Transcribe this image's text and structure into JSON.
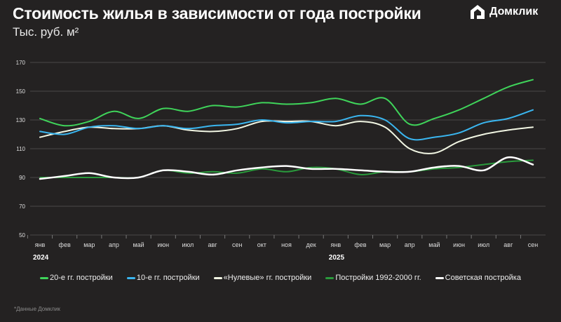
{
  "header": {
    "title": "Стоимость жилья в зависимости от года постройки",
    "subtitle": "Тыс. руб. м²",
    "logo_text": "Домклик"
  },
  "chart_data": {
    "type": "line",
    "title": "Стоимость жилья в зависимости от года постройки",
    "ylabel": "Тыс. руб. м²",
    "ylim": [
      50,
      170
    ],
    "yticks": [
      50,
      70,
      90,
      110,
      130,
      150,
      170
    ],
    "grid": true,
    "legend_position": "bottom",
    "categories": [
      "янв",
      "фев",
      "мар",
      "апр",
      "май",
      "июн",
      "июл",
      "авг",
      "сен",
      "окт",
      "ноя",
      "дек",
      "янв",
      "фев",
      "мар",
      "апр",
      "май",
      "июн",
      "июл",
      "авг",
      "сен"
    ],
    "year_labels": [
      {
        "label": "2024",
        "index": 0
      },
      {
        "label": "2025",
        "index": 12
      }
    ],
    "series": [
      {
        "name": "20-е гг. постройки",
        "color": "#3fd45a",
        "width": 2,
        "values": [
          131,
          126,
          129,
          136,
          131,
          138,
          136,
          140,
          139,
          142,
          141,
          142,
          145,
          141,
          145,
          127,
          131,
          137,
          145,
          153,
          158
        ]
      },
      {
        "name": "10-е гг. постройки",
        "color": "#3ab6f0",
        "width": 2,
        "values": [
          122,
          120,
          125,
          126,
          124,
          126,
          124,
          126,
          127,
          130,
          128,
          129,
          129,
          133,
          130,
          117,
          118,
          121,
          128,
          131,
          137
        ]
      },
      {
        "name": "«Нулевые» гг. постройки",
        "color": "#f2f7e4",
        "width": 2,
        "values": [
          118,
          122,
          125,
          124,
          124,
          126,
          123,
          122,
          124,
          129,
          129,
          129,
          126,
          129,
          125,
          110,
          107,
          115,
          120,
          123,
          125
        ]
      },
      {
        "name": "Постройки 1992-2000 гг.",
        "color": "#2a9a3c",
        "width": 2,
        "values": [
          90,
          90,
          90,
          90,
          90,
          95,
          93,
          94,
          93,
          96,
          94,
          97,
          96,
          92,
          94,
          94,
          96,
          97,
          99,
          101,
          102
        ]
      },
      {
        "name": "Советская постройка",
        "color": "#ffffff",
        "width": 2.5,
        "values": [
          89,
          91,
          93,
          90,
          90,
          95,
          94,
          92,
          95,
          97,
          98,
          96,
          96,
          95,
          94,
          94,
          97,
          98,
          95,
          104,
          99
        ]
      }
    ]
  },
  "footnote": "*Данные Домклик"
}
